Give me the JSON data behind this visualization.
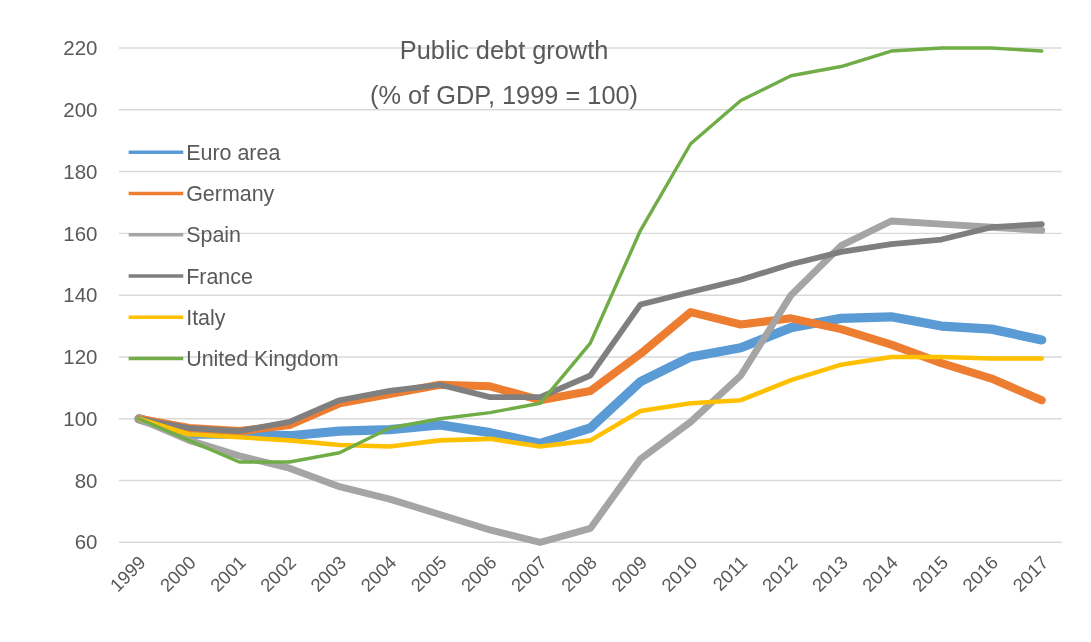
{
  "chart_data": {
    "type": "line",
    "title": "Public debt growth",
    "subtitle": "(% of GDP, 1999 = 100)",
    "categories": [
      "1999",
      "2000",
      "2001",
      "2002",
      "2003",
      "2004",
      "2005",
      "2006",
      "2007",
      "2008",
      "2009",
      "2010",
      "2011",
      "2012",
      "2013",
      "2014",
      "2015",
      "2016",
      "2017"
    ],
    "series": [
      {
        "name": "Euro area",
        "color": "#5b9bd5",
        "values": [
          100,
          95,
          95,
          94.5,
          96,
          96.5,
          98,
          95.5,
          92,
          97,
          112,
          120,
          123,
          129.5,
          132.5,
          133,
          130,
          129,
          125.5
        ]
      },
      {
        "name": "Germany",
        "color": "#ed7d31",
        "values": [
          100,
          97,
          96,
          98,
          105,
          108,
          111,
          110.5,
          106,
          109,
          121,
          134.5,
          130.5,
          132.5,
          129,
          124,
          118,
          113,
          106
        ]
      },
      {
        "name": "Spain",
        "color": "#a5a5a5",
        "values": [
          100,
          93,
          88,
          84,
          78,
          74,
          69,
          64,
          60,
          64.5,
          87,
          99,
          114,
          140,
          156,
          164,
          163,
          162,
          161
        ]
      },
      {
        "name": "France",
        "color": "#7f7f7f",
        "values": [
          100,
          97,
          96,
          99,
          106,
          109,
          111,
          107,
          107,
          114,
          137,
          141,
          145,
          150,
          154,
          156.5,
          158,
          162,
          163
        ]
      },
      {
        "name": "Italy",
        "color": "#ffc000",
        "values": [
          100,
          95,
          94,
          93,
          91.5,
          91,
          93,
          93.5,
          91,
          93,
          102.5,
          105,
          106,
          112.5,
          117.5,
          120,
          120,
          119.5,
          119.5
        ]
      },
      {
        "name": "United Kingdom",
        "color": "#70ad47",
        "values": [
          100,
          93,
          86,
          86,
          89,
          97,
          100,
          102,
          105,
          124.5,
          161,
          189,
          203,
          211,
          214,
          219,
          220,
          220,
          219
        ]
      }
    ],
    "ylim": [
      60,
      220
    ],
    "yticks": [
      60,
      80,
      100,
      120,
      140,
      160,
      180,
      200,
      220
    ],
    "grid": "y",
    "legend": "top left",
    "marker": "none",
    "line_style": "solid"
  }
}
